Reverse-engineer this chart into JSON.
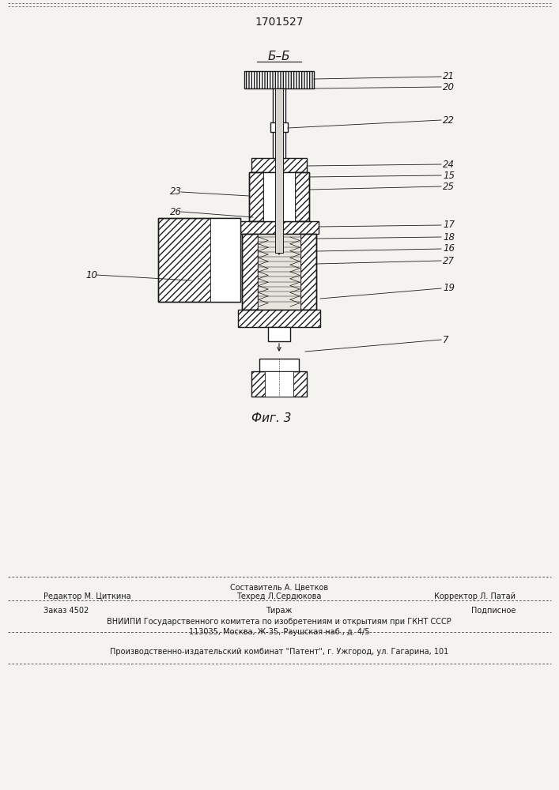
{
  "title": "1701527",
  "fig_label": "Фиг. 3",
  "section_label": "Б–Б",
  "bg_color": "#f5f3f0",
  "line_color": "#1a1a1a",
  "footer_line1_left": "Редактор М. Циткина",
  "footer_line1_center_top": "Составитель А. Цветков",
  "footer_line1_center_bot": "Техред Л.Сердюкова",
  "footer_line1_right": "Корректор Л. Патай",
  "footer_line2_left": "Заказ 4502",
  "footer_line2_center": "Тираж",
  "footer_line2_right": "Подписное",
  "footer_line3": "ВНИИПИ Государственного комитета по изобретениям и открытиям при ГКНТ СССР",
  "footer_line4": "113035, Москва, Ж-35, Раушская наб., д. 4/5",
  "footer_line5": "Производственно-издательский комбинат \"Патент\", г. Ужгород, ул. Гагарина, 101"
}
